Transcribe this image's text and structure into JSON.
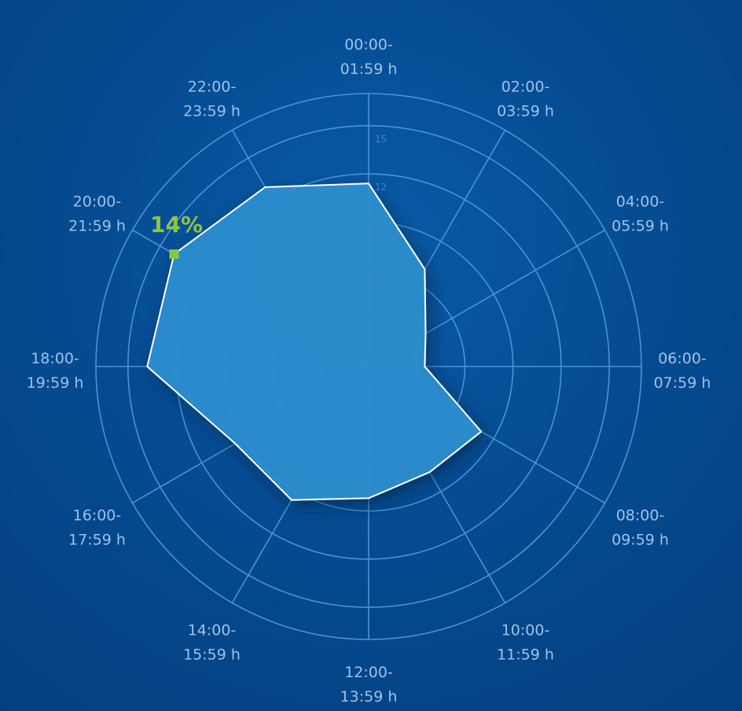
{
  "chart_data": {
    "type": "radar",
    "categories": [
      [
        "00:00-",
        "01:59 h"
      ],
      [
        "02:00-",
        "03:59 h"
      ],
      [
        "04:00-",
        "05:59 h"
      ],
      [
        "06:00-",
        "07:59 h"
      ],
      [
        "08:00-",
        "09:59 h"
      ],
      [
        "10:00-",
        "11:59 h"
      ],
      [
        "12:00-",
        "13:59 h"
      ],
      [
        "14:00-",
        "15:59 h"
      ],
      [
        "16:00-",
        "17:59 h"
      ],
      [
        "18:00-",
        "19:59 h"
      ],
      [
        "20:00-",
        "21:59 h"
      ],
      [
        "22:00-",
        "23:59 h"
      ]
    ],
    "values": [
      11.4,
      7.0,
      4.1,
      3.5,
      8.1,
      7.6,
      8.2,
      9.6,
      9.6,
      13.8,
      14.0,
      12.9
    ],
    "radial_ticks": [
      "3",
      "6",
      "9",
      "12",
      "15"
    ],
    "rmax": 17,
    "highlight": {
      "index": 10,
      "label": "14%"
    },
    "colors": {
      "fill": "#2b8fd0",
      "stroke": "#ffffff",
      "grid": "#4a93d3",
      "highlight": "#8dc63f"
    }
  }
}
